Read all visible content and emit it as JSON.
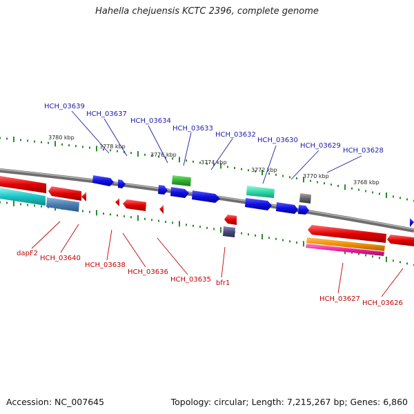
{
  "title": "Hahella chejuensis KCTC 2396, complete genome",
  "footer": {
    "accession": "Accession: NC_007645",
    "summary": "Topology: circular; Length: 7,215,267 bp; Genes: 6,860"
  },
  "scale": {
    "ticks": [
      "3780 kbp",
      "3778 kbp",
      "3776 kbp",
      "3774 kbp",
      "3772 kbp",
      "3770 kbp",
      "3768 kbp"
    ]
  },
  "labels": {
    "top": [
      "HCH_03639",
      "HCH_03637",
      "HCH_03634",
      "HCH_03633",
      "HCH_03632",
      "HCH_03630",
      "HCH_03629",
      "HCH_03628"
    ],
    "bottom": [
      "dapF2",
      "HCH_03640",
      "HCH_03638",
      "HCH_03636",
      "HCH_03635",
      "bfr1",
      "HCH_03627",
      "HCH_03626"
    ]
  },
  "colors": {
    "backbone": "#808080",
    "tick": "#2a8a2a",
    "label_top": "#1a1aa8",
    "label_bottom": "#c00000",
    "blue": "#1010e0",
    "red": "#e00000"
  }
}
